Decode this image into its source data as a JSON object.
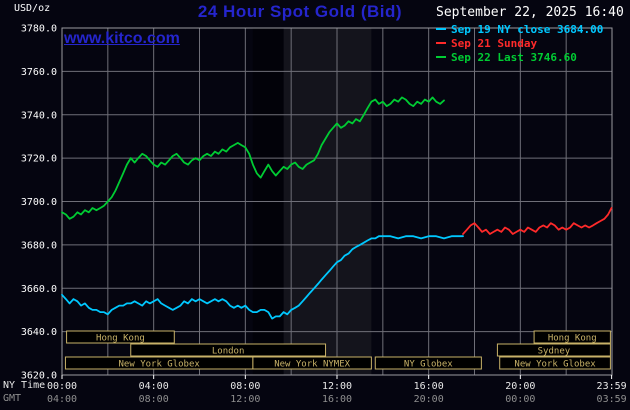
{
  "header": {
    "units_label": "USD/oz",
    "title": "24 Hour Spot Gold (Bid)",
    "datetime": "September 22, 2025 16:40",
    "watermark": "www.kitco.com",
    "legend": [
      {
        "label": "Sep 19 NY close 3684.00",
        "color": "#00c8ff"
      },
      {
        "label": "Sep 21 Sunday",
        "color": "#ff2a2a"
      },
      {
        "label": "Sep 22 Last 3746.60",
        "color": "#00cc33"
      }
    ]
  },
  "axes": {
    "ny_time_label": "NY Time",
    "gmt_label": "GMT"
  },
  "colors": {
    "background": "#050510",
    "title_blue": "#2525cd",
    "watermark_blue": "#2525cd",
    "grid": "#6f6f78",
    "border": "#9a9aa0",
    "session_khaki": "#c8b268",
    "axis_text": "#ffffff",
    "gmt_text": "#8f8f8f"
  },
  "chart_data": {
    "type": "line",
    "title": "24 Hour Spot Gold (Bid)",
    "ylabel": "USD/oz",
    "ylim": [
      3620,
      3780
    ],
    "xlim_hours": [
      0,
      24
    ],
    "grid": true,
    "legend_position": "top-right",
    "last_price": 3746.6,
    "prev_close": 3684.0,
    "y_ticks": [
      3620,
      3640,
      3660,
      3680,
      3700,
      3720,
      3740,
      3760,
      3780
    ],
    "x_gridline_hours": [
      2,
      4,
      6,
      8,
      10,
      12,
      14,
      16,
      18,
      20,
      22
    ],
    "x_ticks": [
      {
        "hour": 0,
        "ny": "00:00",
        "gmt": "04:00"
      },
      {
        "hour": 4,
        "ny": "04:00",
        "gmt": "08:00"
      },
      {
        "hour": 8,
        "ny": "08:00",
        "gmt": "12:00"
      },
      {
        "hour": 12,
        "ny": "12:00",
        "gmt": "16:00"
      },
      {
        "hour": 16,
        "ny": "16:00",
        "gmt": "20:00"
      },
      {
        "hour": 20,
        "ny": "20:00",
        "gmt": "00:00"
      },
      {
        "hour": 23.983,
        "ny": "23:59",
        "gmt": "03:59"
      }
    ],
    "bands": [
      {
        "start": 8.33,
        "end": 9.67,
        "color": "#020209"
      },
      {
        "start": 9.67,
        "end": 13.5,
        "color": "#14141c"
      }
    ],
    "sessions": [
      {
        "label": "Hong Kong",
        "row": 0,
        "start": 0.2,
        "end": 4.9
      },
      {
        "label": "Hong Kong",
        "row": 0,
        "start": 20.6,
        "end": 23.93
      },
      {
        "label": "London",
        "row": 1,
        "start": 3.0,
        "end": 11.5
      },
      {
        "label": "Sydney",
        "row": 1,
        "start": 19.0,
        "end": 23.93
      },
      {
        "label": "New York Globex",
        "row": 2,
        "start": 0.15,
        "end": 8.33
      },
      {
        "label": "New York NYMEX",
        "row": 2,
        "start": 8.33,
        "end": 13.5
      },
      {
        "label": "NY Globex",
        "row": 2,
        "start": 13.67,
        "end": 18.3
      },
      {
        "label": "New York Globex",
        "row": 2,
        "start": 19.1,
        "end": 23.93
      }
    ],
    "series": [
      {
        "id": "sep19-ny-close",
        "name": "Sep 19 NY close",
        "color": "#00c8ff",
        "points": [
          [
            0.0,
            3657
          ],
          [
            0.17,
            3655
          ],
          [
            0.33,
            3653
          ],
          [
            0.5,
            3655
          ],
          [
            0.67,
            3654
          ],
          [
            0.83,
            3652
          ],
          [
            1.0,
            3653
          ],
          [
            1.17,
            3651
          ],
          [
            1.33,
            3650
          ],
          [
            1.5,
            3650
          ],
          [
            1.67,
            3649
          ],
          [
            1.83,
            3649
          ],
          [
            2.0,
            3648
          ],
          [
            2.17,
            3650
          ],
          [
            2.33,
            3651
          ],
          [
            2.5,
            3652
          ],
          [
            2.67,
            3652
          ],
          [
            2.83,
            3653
          ],
          [
            3.0,
            3653
          ],
          [
            3.17,
            3654
          ],
          [
            3.33,
            3653
          ],
          [
            3.5,
            3652
          ],
          [
            3.67,
            3654
          ],
          [
            3.83,
            3653
          ],
          [
            4.0,
            3654
          ],
          [
            4.17,
            3655
          ],
          [
            4.33,
            3653
          ],
          [
            4.5,
            3652
          ],
          [
            4.67,
            3651
          ],
          [
            4.83,
            3650
          ],
          [
            5.0,
            3651
          ],
          [
            5.17,
            3652
          ],
          [
            5.33,
            3654
          ],
          [
            5.5,
            3653
          ],
          [
            5.67,
            3655
          ],
          [
            5.83,
            3654
          ],
          [
            6.0,
            3655
          ],
          [
            6.17,
            3654
          ],
          [
            6.33,
            3653
          ],
          [
            6.5,
            3654
          ],
          [
            6.67,
            3655
          ],
          [
            6.83,
            3654
          ],
          [
            7.0,
            3655
          ],
          [
            7.17,
            3654
          ],
          [
            7.33,
            3652
          ],
          [
            7.5,
            3651
          ],
          [
            7.67,
            3652
          ],
          [
            7.83,
            3651
          ],
          [
            8.0,
            3652
          ],
          [
            8.17,
            3650
          ],
          [
            8.33,
            3649
          ],
          [
            8.5,
            3649
          ],
          [
            8.67,
            3650
          ],
          [
            8.83,
            3650
          ],
          [
            9.0,
            3649
          ],
          [
            9.17,
            3646
          ],
          [
            9.33,
            3647
          ],
          [
            9.5,
            3647
          ],
          [
            9.67,
            3649
          ],
          [
            9.83,
            3648
          ],
          [
            10.0,
            3650
          ],
          [
            10.17,
            3651
          ],
          [
            10.33,
            3652
          ],
          [
            10.5,
            3654
          ],
          [
            10.67,
            3656
          ],
          [
            10.83,
            3658
          ],
          [
            11.0,
            3660
          ],
          [
            11.17,
            3662
          ],
          [
            11.33,
            3664
          ],
          [
            11.5,
            3666
          ],
          [
            11.67,
            3668
          ],
          [
            11.83,
            3670
          ],
          [
            12.0,
            3672
          ],
          [
            12.17,
            3673
          ],
          [
            12.33,
            3675
          ],
          [
            12.5,
            3676
          ],
          [
            12.67,
            3678
          ],
          [
            12.83,
            3679
          ],
          [
            13.0,
            3680
          ],
          [
            13.17,
            3681
          ],
          [
            13.33,
            3682
          ],
          [
            13.5,
            3683
          ],
          [
            13.67,
            3683
          ],
          [
            13.83,
            3684
          ],
          [
            14.0,
            3684
          ],
          [
            14.33,
            3684
          ],
          [
            14.67,
            3683
          ],
          [
            15.0,
            3684
          ],
          [
            15.33,
            3684
          ],
          [
            15.67,
            3683
          ],
          [
            16.0,
            3684
          ],
          [
            16.33,
            3684
          ],
          [
            16.67,
            3683
          ],
          [
            17.0,
            3684
          ],
          [
            17.33,
            3684
          ],
          [
            17.5,
            3684
          ]
        ]
      },
      {
        "id": "sep21-sunday",
        "name": "Sep 21 Sunday",
        "color": "#ff2a2a",
        "points": [
          [
            17.5,
            3685
          ],
          [
            17.67,
            3687
          ],
          [
            17.83,
            3689
          ],
          [
            18.0,
            3690
          ],
          [
            18.17,
            3688
          ],
          [
            18.33,
            3686
          ],
          [
            18.5,
            3687
          ],
          [
            18.67,
            3685
          ],
          [
            18.83,
            3686
          ],
          [
            19.0,
            3687
          ],
          [
            19.17,
            3686
          ],
          [
            19.33,
            3688
          ],
          [
            19.5,
            3687
          ],
          [
            19.67,
            3685
          ],
          [
            19.83,
            3686
          ],
          [
            20.0,
            3687
          ],
          [
            20.17,
            3686
          ],
          [
            20.33,
            3688
          ],
          [
            20.5,
            3687
          ],
          [
            20.67,
            3686
          ],
          [
            20.83,
            3688
          ],
          [
            21.0,
            3689
          ],
          [
            21.17,
            3688
          ],
          [
            21.33,
            3690
          ],
          [
            21.5,
            3689
          ],
          [
            21.67,
            3687
          ],
          [
            21.83,
            3688
          ],
          [
            22.0,
            3687
          ],
          [
            22.17,
            3688
          ],
          [
            22.33,
            3690
          ],
          [
            22.5,
            3689
          ],
          [
            22.67,
            3688
          ],
          [
            22.83,
            3689
          ],
          [
            23.0,
            3688
          ],
          [
            23.17,
            3689
          ],
          [
            23.33,
            3690
          ],
          [
            23.5,
            3691
          ],
          [
            23.67,
            3692
          ],
          [
            23.83,
            3694
          ],
          [
            23.98,
            3697
          ]
        ]
      },
      {
        "id": "sep22-current",
        "name": "Sep 22 Last",
        "color": "#00cc33",
        "points": [
          [
            0.0,
            3695
          ],
          [
            0.17,
            3694
          ],
          [
            0.33,
            3692
          ],
          [
            0.5,
            3693
          ],
          [
            0.67,
            3695
          ],
          [
            0.83,
            3694
          ],
          [
            1.0,
            3696
          ],
          [
            1.17,
            3695
          ],
          [
            1.33,
            3697
          ],
          [
            1.5,
            3696
          ],
          [
            1.67,
            3697
          ],
          [
            1.83,
            3698
          ],
          [
            2.0,
            3700
          ],
          [
            2.17,
            3702
          ],
          [
            2.33,
            3705
          ],
          [
            2.5,
            3709
          ],
          [
            2.67,
            3713
          ],
          [
            2.83,
            3717
          ],
          [
            3.0,
            3720
          ],
          [
            3.17,
            3718
          ],
          [
            3.33,
            3720
          ],
          [
            3.5,
            3722
          ],
          [
            3.67,
            3721
          ],
          [
            3.83,
            3719
          ],
          [
            4.0,
            3717
          ],
          [
            4.17,
            3716
          ],
          [
            4.33,
            3718
          ],
          [
            4.5,
            3717
          ],
          [
            4.67,
            3719
          ],
          [
            4.83,
            3721
          ],
          [
            5.0,
            3722
          ],
          [
            5.17,
            3720
          ],
          [
            5.33,
            3718
          ],
          [
            5.5,
            3717
          ],
          [
            5.67,
            3719
          ],
          [
            5.83,
            3720
          ],
          [
            6.0,
            3719
          ],
          [
            6.17,
            3721
          ],
          [
            6.33,
            3722
          ],
          [
            6.5,
            3721
          ],
          [
            6.67,
            3723
          ],
          [
            6.83,
            3722
          ],
          [
            7.0,
            3724
          ],
          [
            7.17,
            3723
          ],
          [
            7.33,
            3725
          ],
          [
            7.5,
            3726
          ],
          [
            7.67,
            3727
          ],
          [
            7.83,
            3726
          ],
          [
            8.0,
            3725
          ],
          [
            8.17,
            3722
          ],
          [
            8.33,
            3717
          ],
          [
            8.5,
            3713
          ],
          [
            8.67,
            3711
          ],
          [
            8.83,
            3714
          ],
          [
            9.0,
            3717
          ],
          [
            9.17,
            3714
          ],
          [
            9.33,
            3712
          ],
          [
            9.5,
            3714
          ],
          [
            9.67,
            3716
          ],
          [
            9.83,
            3715
          ],
          [
            10.0,
            3717
          ],
          [
            10.17,
            3718
          ],
          [
            10.33,
            3716
          ],
          [
            10.5,
            3715
          ],
          [
            10.67,
            3717
          ],
          [
            10.83,
            3718
          ],
          [
            11.0,
            3719
          ],
          [
            11.17,
            3722
          ],
          [
            11.33,
            3726
          ],
          [
            11.5,
            3729
          ],
          [
            11.67,
            3732
          ],
          [
            11.83,
            3734
          ],
          [
            12.0,
            3736
          ],
          [
            12.17,
            3734
          ],
          [
            12.33,
            3735
          ],
          [
            12.5,
            3737
          ],
          [
            12.67,
            3736
          ],
          [
            12.83,
            3738
          ],
          [
            13.0,
            3737
          ],
          [
            13.17,
            3740
          ],
          [
            13.33,
            3743
          ],
          [
            13.5,
            3746
          ],
          [
            13.67,
            3747
          ],
          [
            13.83,
            3745
          ],
          [
            14.0,
            3746
          ],
          [
            14.17,
            3744
          ],
          [
            14.33,
            3745
          ],
          [
            14.5,
            3747
          ],
          [
            14.67,
            3746
          ],
          [
            14.83,
            3748
          ],
          [
            15.0,
            3747
          ],
          [
            15.17,
            3745
          ],
          [
            15.33,
            3744
          ],
          [
            15.5,
            3746
          ],
          [
            15.67,
            3745
          ],
          [
            15.83,
            3747
          ],
          [
            16.0,
            3746
          ],
          [
            16.17,
            3748
          ],
          [
            16.33,
            3746
          ],
          [
            16.5,
            3745
          ],
          [
            16.67,
            3746.6
          ]
        ]
      }
    ]
  }
}
